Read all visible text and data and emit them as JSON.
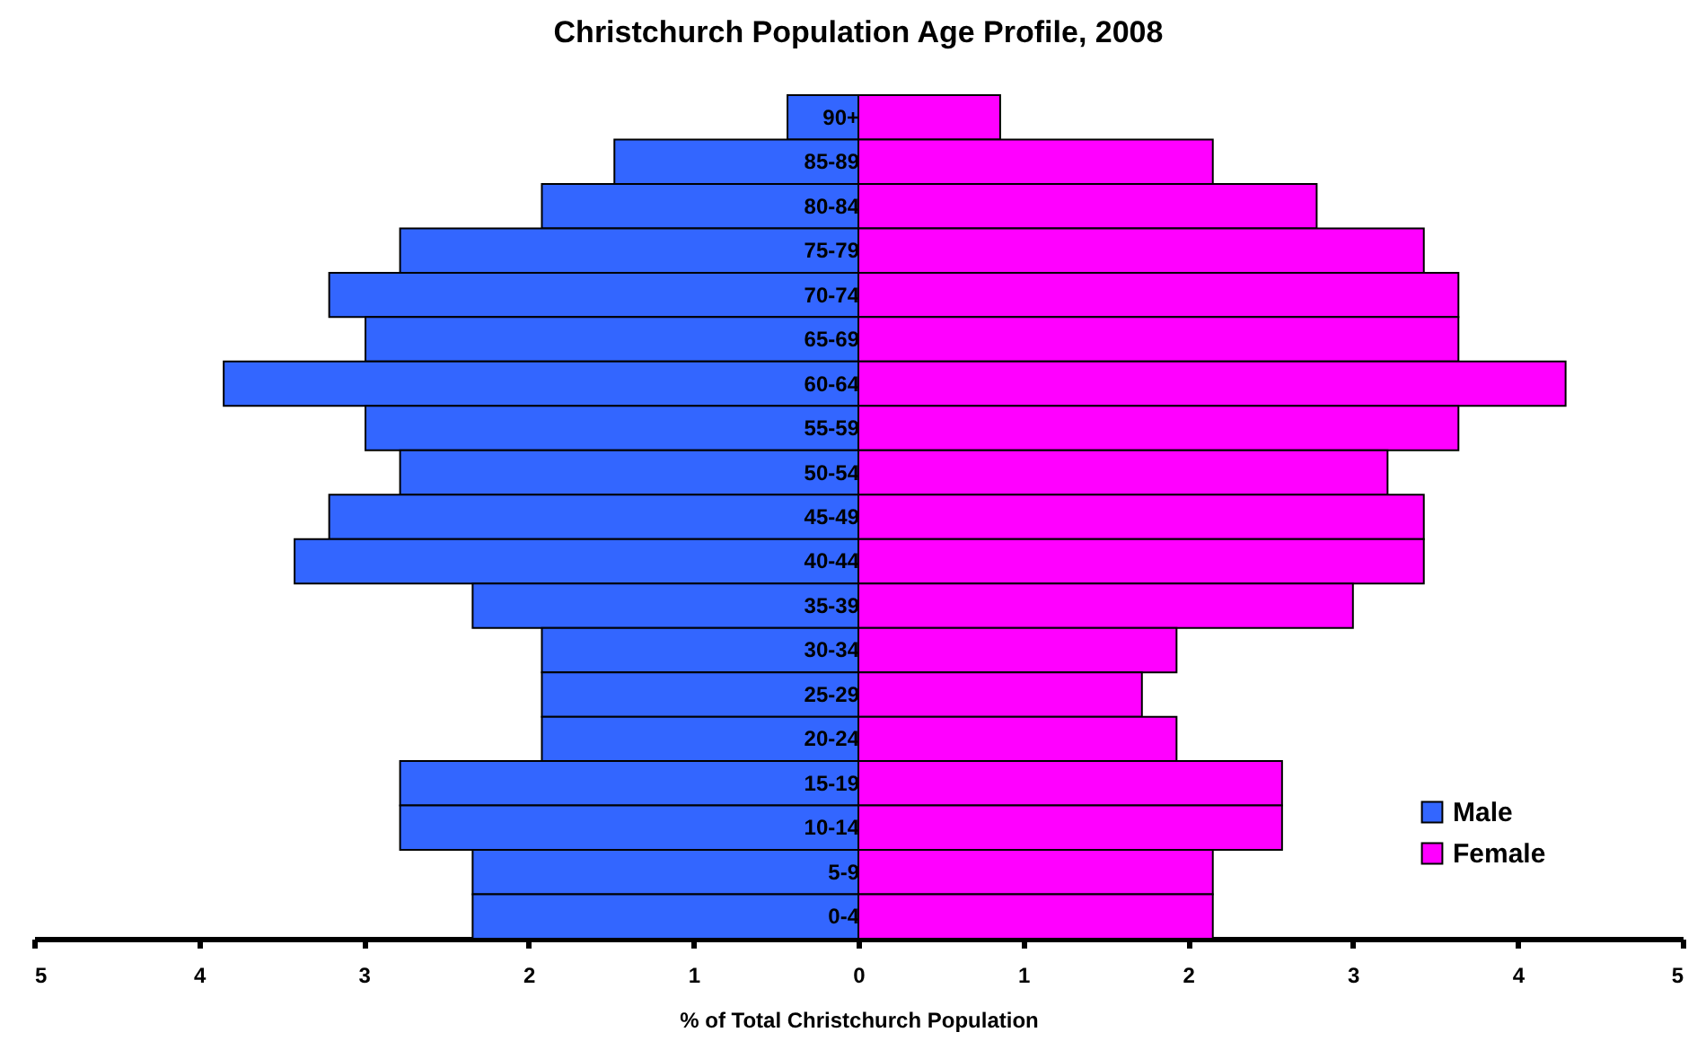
{
  "chart_data": {
    "type": "bar",
    "orientation": "horizontal",
    "title": "Christchurch Population Age Profile, 2008",
    "xlabel": "% of Total Christchurch Population",
    "categories": [
      "90+",
      "85-89",
      "80-84",
      "75-79",
      "70-74",
      "65-69",
      "60-64",
      "55-59",
      "50-54",
      "45-49",
      "40-44",
      "35-39",
      "30-34",
      "25-29",
      "20-24",
      "15-19",
      "10-14",
      "5-9",
      "0-4"
    ],
    "series": [
      {
        "name": "Male",
        "color": "#3366ff",
        "values": [
          -0.43,
          -1.48,
          -1.92,
          -2.78,
          -3.21,
          -2.99,
          -3.85,
          -2.99,
          -2.78,
          -3.21,
          -3.42,
          -2.34,
          -1.92,
          -1.92,
          -1.92,
          -2.78,
          -2.78,
          -2.34,
          -2.34
        ]
      },
      {
        "name": "Female",
        "color": "#ff00ff",
        "values": [
          0.86,
          2.15,
          2.78,
          3.43,
          3.64,
          3.64,
          4.29,
          3.64,
          3.21,
          3.43,
          3.43,
          3.0,
          1.93,
          1.72,
          1.93,
          2.57,
          2.57,
          2.15,
          2.15
        ]
      }
    ],
    "xlim": [
      -5,
      5
    ],
    "xticks": [
      {
        "value": -5,
        "label": "5"
      },
      {
        "value": -4,
        "label": "4"
      },
      {
        "value": -3,
        "label": "3"
      },
      {
        "value": -2,
        "label": "2"
      },
      {
        "value": -1,
        "label": "1"
      },
      0,
      1,
      2,
      3,
      4,
      5
    ],
    "stacked": true,
    "legend": "bottom right"
  }
}
